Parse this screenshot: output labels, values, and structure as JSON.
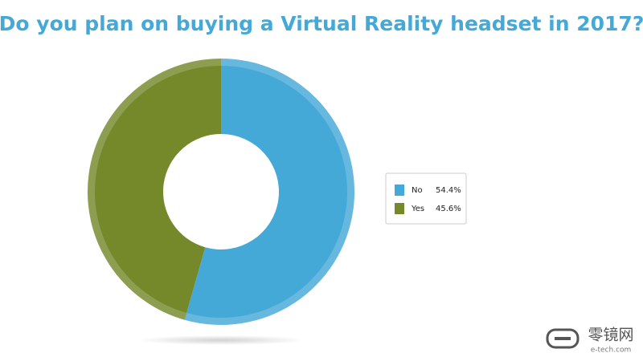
{
  "chart_data": {
    "type": "donut",
    "title": "Do you plan on buying a Virtual Reality headset in 2017?",
    "categories": [
      "No",
      "Yes"
    ],
    "values": [
      54.4,
      45.6
    ],
    "value_labels": [
      "54.4%",
      "45.6%"
    ],
    "colors": [
      "#45a9d8",
      "#75892a"
    ],
    "legend": "right"
  },
  "watermark": {
    "name": "零镜网",
    "site": "e-tech.com"
  }
}
